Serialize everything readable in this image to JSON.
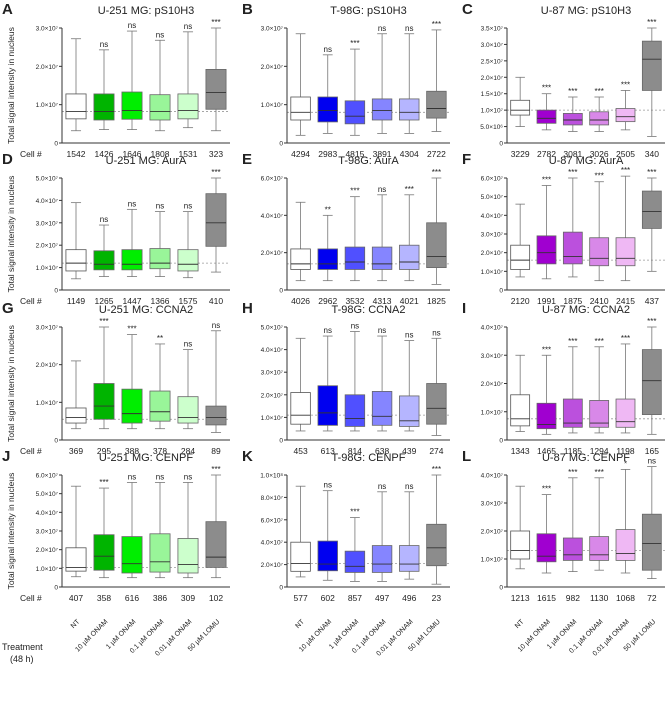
{
  "treatment": {
    "title": "Treatment",
    "subtitle": "(48 h)",
    "labels": [
      "NT",
      "10 µM ONAM",
      "1 µM ONAM",
      "0.1 µM ONAM",
      "0.01 µM ONAM",
      "50 µM LOMU"
    ]
  },
  "cell_label": "Cell #",
  "ylabel": "Total signal intensity in nucleus",
  "chart_data": {
    "type": "box",
    "box_format": "[whisker_low, q1, median, q3, whisker_high] in units of 1e7",
    "palettes": {
      "U-251 MG": [
        "#ffffff",
        "#00b400",
        "#00ee00",
        "#99f599",
        "#ccffcc",
        "#8c8c8c"
      ],
      "T-98G": [
        "#ffffff",
        "#0000f0",
        "#5050ff",
        "#8585ff",
        "#b5b5ff",
        "#8c8c8c"
      ],
      "U-87 MG": [
        "#ffffff",
        "#a000d0",
        "#bb50dd",
        "#d888e8",
        "#efb8f4",
        "#8c8c8c"
      ]
    },
    "panels": [
      {
        "letter": "A",
        "title": "U-251 MG: pS10H3",
        "cell_line": "U-251 MG",
        "ylim": [
          0,
          3
        ],
        "ticks": [
          0,
          1,
          2,
          3
        ],
        "tick_labels": [
          "0",
          "1.0×10⁷",
          "2.0×10⁷",
          "3.0×10⁷"
        ],
        "ref": 0.82,
        "boxes": [
          [
            0.32,
            0.63,
            0.82,
            1.28,
            2.72
          ],
          [
            0.35,
            0.6,
            0.82,
            1.28,
            2.43
          ],
          [
            0.35,
            0.62,
            0.85,
            1.33,
            2.92
          ],
          [
            0.32,
            0.6,
            0.82,
            1.26,
            2.68
          ],
          [
            0.4,
            0.63,
            0.85,
            1.28,
            2.9
          ],
          [
            0.32,
            0.88,
            1.32,
            1.92,
            3.0
          ]
        ],
        "sig": [
          "",
          "ns",
          "ns",
          "ns",
          "ns",
          "***"
        ],
        "n": [
          "1542",
          "1426",
          "1646",
          "1808",
          "1531",
          "323"
        ]
      },
      {
        "letter": "B",
        "title": "T-98G: pS10H3",
        "cell_line": "T-98G",
        "ylim": [
          0,
          3
        ],
        "ticks": [
          0,
          1,
          2,
          3
        ],
        "tick_labels": [
          "0",
          "1.0×10⁷",
          "2.0×10⁷",
          "3.0×10⁷"
        ],
        "ref": 0.8,
        "boxes": [
          [
            0.2,
            0.6,
            0.8,
            1.2,
            2.85
          ],
          [
            0.25,
            0.55,
            0.85,
            1.2,
            2.3
          ],
          [
            0.2,
            0.5,
            0.7,
            1.1,
            2.45
          ],
          [
            0.25,
            0.6,
            0.85,
            1.15,
            2.85
          ],
          [
            0.25,
            0.6,
            0.8,
            1.15,
            2.85
          ],
          [
            0.3,
            0.65,
            0.9,
            1.35,
            2.95
          ]
        ],
        "sig": [
          "",
          "ns",
          "***",
          "ns",
          "ns",
          "***"
        ],
        "n": [
          "4294",
          "2983",
          "4815",
          "3891",
          "4304",
          "2722"
        ]
      },
      {
        "letter": "C",
        "title": "U-87 MG: pS10H3",
        "cell_line": "U-87 MG",
        "ylim": [
          0,
          3.5
        ],
        "ticks": [
          0,
          0.5,
          1,
          1.5,
          2,
          2.5,
          3,
          3.5
        ],
        "tick_labels": [
          "0",
          "5.0×10⁶",
          "1.0×10⁷",
          "1.5×10⁷",
          "2.0×10⁷",
          "2.5×10⁷",
          "3.0×10⁷",
          "3.5×10⁷"
        ],
        "ref": 1.0,
        "boxes": [
          [
            0.5,
            0.85,
            1.0,
            1.3,
            2.0
          ],
          [
            0.4,
            0.6,
            0.75,
            1.0,
            1.5
          ],
          [
            0.35,
            0.55,
            0.7,
            0.9,
            1.4
          ],
          [
            0.35,
            0.55,
            0.7,
            0.95,
            1.4
          ],
          [
            0.4,
            0.65,
            0.8,
            1.05,
            1.6
          ],
          [
            0.2,
            1.6,
            2.55,
            3.1,
            3.5
          ]
        ],
        "sig": [
          "",
          "***",
          "***",
          "***",
          "***",
          "***"
        ],
        "n": [
          "3229",
          "2782",
          "3081",
          "3026",
          "2505",
          "340"
        ]
      },
      {
        "letter": "D",
        "title": "U-251 MG: AurA",
        "cell_line": "U-251 MG",
        "ylim": [
          0,
          5
        ],
        "ticks": [
          0,
          1,
          2,
          3,
          4,
          5
        ],
        "tick_labels": [
          "0",
          "1.0×10⁷",
          "2.0×10⁷",
          "3.0×10⁷",
          "4.0×10⁷",
          "5.0×10⁷"
        ],
        "ref": 1.2,
        "boxes": [
          [
            0.5,
            0.85,
            1.2,
            1.8,
            3.9
          ],
          [
            0.6,
            0.9,
            1.15,
            1.75,
            2.9
          ],
          [
            0.6,
            0.9,
            1.15,
            1.8,
            3.6
          ],
          [
            0.6,
            0.95,
            1.2,
            1.85,
            3.5
          ],
          [
            0.55,
            0.85,
            1.15,
            1.8,
            3.5
          ],
          [
            0.8,
            1.95,
            3.0,
            4.3,
            5.0
          ]
        ],
        "sig": [
          "",
          "ns",
          "ns",
          "ns",
          "ns",
          "***"
        ],
        "n": [
          "1149",
          "1265",
          "1447",
          "1366",
          "1575",
          "410"
        ]
      },
      {
        "letter": "E",
        "title": "T-98G: AurA",
        "cell_line": "T-98G",
        "ylim": [
          0,
          6
        ],
        "ticks": [
          0,
          2,
          4,
          6
        ],
        "tick_labels": [
          "0",
          "2.0×10⁷",
          "4.0×10⁷",
          "6.0×10⁷"
        ],
        "ref": 1.4,
        "boxes": [
          [
            0.5,
            1.1,
            1.4,
            2.2,
            4.7
          ],
          [
            0.5,
            1.1,
            1.4,
            2.2,
            4.0
          ],
          [
            0.5,
            1.1,
            1.5,
            2.3,
            5.0
          ],
          [
            0.5,
            1.1,
            1.4,
            2.3,
            5.1
          ],
          [
            0.5,
            1.1,
            1.5,
            2.4,
            5.1
          ],
          [
            0.3,
            1.2,
            1.8,
            3.6,
            6.0
          ]
        ],
        "sig": [
          "",
          "**",
          "***",
          "ns",
          "***",
          "***"
        ],
        "n": [
          "4026",
          "2962",
          "3532",
          "4313",
          "4021",
          "1825"
        ]
      },
      {
        "letter": "F",
        "title": "U-87 MG: AurA",
        "cell_line": "U-87 MG",
        "ylim": [
          0,
          6
        ],
        "ticks": [
          0,
          1,
          2,
          3,
          4,
          5,
          6
        ],
        "tick_labels": [
          "0",
          "1.0×10⁷",
          "2.0×10⁷",
          "3.0×10⁷",
          "4.0×10⁷",
          "5.0×10⁷",
          "6.0×10⁷"
        ],
        "ref": 1.6,
        "boxes": [
          [
            0.7,
            1.1,
            1.6,
            2.4,
            4.6
          ],
          [
            0.6,
            1.4,
            2.0,
            2.9,
            5.6
          ],
          [
            0.7,
            1.4,
            1.8,
            3.1,
            6.0
          ],
          [
            0.5,
            1.3,
            1.7,
            2.8,
            5.8
          ],
          [
            0.5,
            1.3,
            1.7,
            2.8,
            6.1
          ],
          [
            1.0,
            3.3,
            4.2,
            5.3,
            6.0
          ]
        ],
        "sig": [
          "",
          "***",
          "***",
          "***",
          "***",
          "***"
        ],
        "n": [
          "2120",
          "1991",
          "1875",
          "2410",
          "2415",
          "437"
        ]
      },
      {
        "letter": "G",
        "title": "U-251 MG: CCNA2",
        "cell_line": "U-251 MG",
        "ylim": [
          0,
          3
        ],
        "ticks": [
          0,
          1,
          2,
          3
        ],
        "tick_labels": [
          "0",
          "1.0×10⁷",
          "2.0×10⁷",
          "3.0×10⁷"
        ],
        "ref": 0.55,
        "boxes": [
          [
            0.3,
            0.45,
            0.6,
            0.85,
            2.1
          ],
          [
            0.3,
            0.55,
            0.9,
            1.5,
            3.0
          ],
          [
            0.3,
            0.45,
            0.7,
            1.35,
            2.8
          ],
          [
            0.3,
            0.5,
            0.75,
            1.3,
            2.55
          ],
          [
            0.3,
            0.45,
            0.6,
            1.15,
            2.4
          ],
          [
            0.2,
            0.4,
            0.6,
            0.9,
            2.9
          ]
        ],
        "sig": [
          "",
          "***",
          "***",
          "**",
          "ns",
          "ns"
        ],
        "n": [
          "369",
          "295",
          "388",
          "378",
          "284",
          "89"
        ]
      },
      {
        "letter": "H",
        "title": "T-98G: CCNA2",
        "cell_line": "T-98G",
        "ylim": [
          0,
          5
        ],
        "ticks": [
          0,
          1,
          2,
          3,
          4,
          5
        ],
        "tick_labels": [
          "0",
          "1.0×10⁷",
          "2.0×10⁷",
          "3.0×10⁷",
          "4.0×10⁷",
          "5.0×10⁷"
        ],
        "ref": 1.1,
        "boxes": [
          [
            0.4,
            0.7,
            1.1,
            2.1,
            4.5
          ],
          [
            0.4,
            0.65,
            1.2,
            2.4,
            4.6
          ],
          [
            0.4,
            0.6,
            0.95,
            2.0,
            4.8
          ],
          [
            0.4,
            0.65,
            1.05,
            2.15,
            4.6
          ],
          [
            0.4,
            0.6,
            0.85,
            1.95,
            4.4
          ],
          [
            0.2,
            0.7,
            1.4,
            2.5,
            4.5
          ]
        ],
        "sig": [
          "",
          "ns",
          "ns",
          "ns",
          "ns",
          "ns"
        ],
        "n": [
          "453",
          "613",
          "814",
          "638",
          "439",
          "274"
        ]
      },
      {
        "letter": "I",
        "title": "U-87 MG: CCNA2",
        "cell_line": "U-87 MG",
        "ylim": [
          0,
          4
        ],
        "ticks": [
          0,
          1,
          2,
          3,
          4
        ],
        "tick_labels": [
          "0",
          "1.0×10⁷",
          "2.0×10⁷",
          "3.0×10⁷",
          "4.0×10⁷"
        ],
        "ref": 0.75,
        "boxes": [
          [
            0.3,
            0.5,
            0.75,
            1.6,
            3.0
          ],
          [
            0.2,
            0.4,
            0.55,
            1.3,
            3.0
          ],
          [
            0.25,
            0.45,
            0.6,
            1.45,
            3.3
          ],
          [
            0.25,
            0.45,
            0.6,
            1.4,
            3.3
          ],
          [
            0.25,
            0.45,
            0.65,
            1.45,
            3.4
          ],
          [
            0.2,
            0.9,
            2.1,
            3.2,
            4.0
          ]
        ],
        "sig": [
          "",
          "***",
          "***",
          "***",
          "***",
          "***"
        ],
        "n": [
          "1343",
          "1465",
          "1185",
          "1294",
          "1198",
          "165"
        ]
      },
      {
        "letter": "J",
        "title": "U-251 MG: CENPF",
        "cell_line": "U-251 MG",
        "ylim": [
          0,
          6
        ],
        "ticks": [
          0,
          1,
          2,
          3,
          4,
          5,
          6
        ],
        "tick_labels": [
          "0",
          "1.0×10⁷",
          "2.0×10⁷",
          "3.0×10⁷",
          "4.0×10⁷",
          "5.0×10⁷",
          "6.0×10⁷"
        ],
        "ref": 1.05,
        "boxes": [
          [
            0.55,
            0.85,
            1.05,
            2.1,
            5.4
          ],
          [
            0.5,
            0.9,
            1.65,
            2.8,
            5.3
          ],
          [
            0.5,
            0.75,
            1.25,
            2.7,
            5.6
          ],
          [
            0.5,
            0.8,
            1.35,
            2.85,
            5.6
          ],
          [
            0.5,
            0.75,
            1.2,
            2.6,
            5.6
          ],
          [
            0.5,
            1.05,
            1.6,
            3.5,
            6.0
          ]
        ],
        "sig": [
          "",
          "***",
          "ns",
          "ns",
          "ns",
          "***"
        ],
        "n": [
          "407",
          "358",
          "616",
          "386",
          "309",
          "102"
        ]
      },
      {
        "letter": "K",
        "title": "T-98G: CENPF",
        "cell_line": "T-98G",
        "ylim": [
          0,
          10
        ],
        "ticks": [
          0,
          2,
          4,
          6,
          8,
          10
        ],
        "tick_labels": [
          "0",
          "2.0×10⁷",
          "4.0×10⁷",
          "6.0×10⁷",
          "8.0×10⁷",
          "1.0×10⁸"
        ],
        "ref": 2.1,
        "boxes": [
          [
            0.9,
            1.4,
            2.1,
            4.0,
            9.0
          ],
          [
            0.6,
            1.45,
            2.05,
            4.1,
            8.6
          ],
          [
            0.5,
            1.3,
            1.85,
            3.2,
            6.2
          ],
          [
            0.5,
            1.3,
            2.05,
            3.7,
            8.5
          ],
          [
            0.7,
            1.4,
            2.05,
            3.7,
            8.5
          ],
          [
            0.25,
            1.9,
            3.5,
            5.6,
            10.0
          ]
        ],
        "sig": [
          "",
          "ns",
          "***",
          "ns",
          "ns",
          "***"
        ],
        "n": [
          "577",
          "602",
          "857",
          "497",
          "496",
          "23"
        ]
      },
      {
        "letter": "L",
        "title": "U-87 MG: CENPF",
        "cell_line": "U-87 MG",
        "ylim": [
          0,
          4
        ],
        "ticks": [
          0,
          1,
          2,
          3,
          4
        ],
        "tick_labels": [
          "0",
          "1.0×10⁷",
          "2.0×10⁷",
          "3.0×10⁷",
          "4.0×10⁷"
        ],
        "ref": 1.3,
        "boxes": [
          [
            0.65,
            1.0,
            1.3,
            2.0,
            3.6
          ],
          [
            0.5,
            0.9,
            1.1,
            1.9,
            3.3
          ],
          [
            0.55,
            0.95,
            1.15,
            1.75,
            3.9
          ],
          [
            0.6,
            0.95,
            1.15,
            1.8,
            3.9
          ],
          [
            0.5,
            0.95,
            1.2,
            2.05,
            4.2
          ],
          [
            0.3,
            0.6,
            1.55,
            2.6,
            4.3
          ]
        ],
        "sig": [
          "",
          "***",
          "***",
          "***",
          "*",
          "ns"
        ],
        "n": [
          "1213",
          "1615",
          "982",
          "1130",
          "1068",
          "72"
        ]
      }
    ]
  }
}
